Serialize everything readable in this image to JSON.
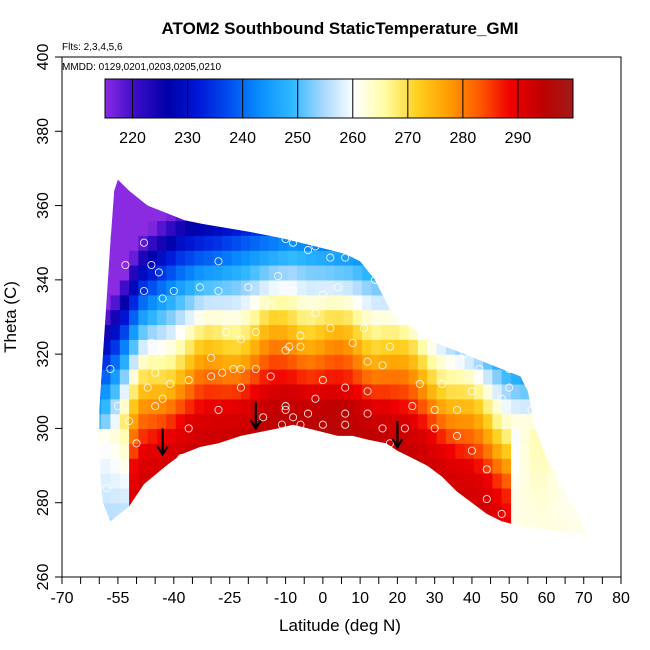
{
  "chart_data": {
    "type": "heatmap",
    "title": "ATOM2 Southbound StaticTemperature_GMI",
    "flights_label": "Flts: 2,3,4,5,6",
    "dates_label": "MMDD: 0129,0201,0203,0205,0210",
    "xlabel": "Latitude (deg N)",
    "ylabel": "Theta (C)",
    "xlim": [
      -70,
      80
    ],
    "ylim": [
      260,
      400
    ],
    "x_ticks": [
      -70,
      -55,
      -40,
      -25,
      -10,
      0,
      10,
      20,
      30,
      40,
      50,
      60,
      70,
      80
    ],
    "x_minor_ticks": [
      -65,
      -60,
      -50,
      -45,
      -35,
      -30,
      -20,
      -15,
      -5,
      5,
      15,
      25,
      35,
      45,
      55,
      65,
      75
    ],
    "y_ticks": [
      260,
      280,
      300,
      320,
      340,
      360,
      380,
      400
    ],
    "colorbar": {
      "range": [
        215,
        300
      ],
      "ticks": [
        220,
        230,
        240,
        250,
        260,
        270,
        280,
        290
      ],
      "colors": [
        "#8a2be2",
        "#3a0bc8",
        "#0000a8",
        "#0018d8",
        "#0050f0",
        "#0a90ff",
        "#30b8ff",
        "#a8d8ff",
        "#ffffff",
        "#fffca0",
        "#ffd020",
        "#ff9e00",
        "#ff5a00",
        "#f00000",
        "#c00000",
        "#a01a1a"
      ]
    },
    "envelope": {
      "bottom": [
        [
          -57,
          275
        ],
        [
          -52,
          279
        ],
        [
          -48,
          285
        ],
        [
          -42,
          290
        ],
        [
          -38,
          293
        ],
        [
          -33,
          295
        ],
        [
          -28,
          296
        ],
        [
          -22,
          298
        ],
        [
          -17,
          299
        ],
        [
          -12,
          300
        ],
        [
          -8,
          301
        ],
        [
          -4,
          300
        ],
        [
          0,
          299
        ],
        [
          4,
          298
        ],
        [
          8,
          298
        ],
        [
          12,
          297
        ],
        [
          17,
          296
        ],
        [
          20,
          294
        ],
        [
          24,
          292
        ],
        [
          28,
          290
        ],
        [
          32,
          287
        ],
        [
          36,
          283
        ],
        [
          40,
          280
        ],
        [
          44,
          277
        ],
        [
          48,
          275
        ],
        [
          52,
          274
        ],
        [
          56,
          273
        ],
        [
          60,
          273
        ],
        [
          64,
          272
        ],
        [
          68,
          272
        ],
        [
          71,
          271
        ]
      ],
      "top": [
        [
          71,
          271
        ],
        [
          68,
          278
        ],
        [
          64,
          285
        ],
        [
          60,
          292
        ],
        [
          57,
          300
        ],
        [
          55,
          310
        ],
        [
          53,
          314
        ],
        [
          48,
          316
        ],
        [
          43,
          318
        ],
        [
          38,
          320
        ],
        [
          33,
          322
        ],
        [
          28,
          324
        ],
        [
          23,
          328
        ],
        [
          18,
          332
        ],
        [
          14,
          340
        ],
        [
          10,
          345
        ],
        [
          6,
          347
        ],
        [
          2,
          348
        ],
        [
          -2,
          349
        ],
        [
          -6,
          350
        ],
        [
          -10,
          351
        ],
        [
          -15,
          352
        ],
        [
          -20,
          353
        ],
        [
          -26,
          354
        ],
        [
          -32,
          355
        ],
        [
          -37,
          356
        ],
        [
          -42,
          358
        ],
        [
          -47,
          360
        ],
        [
          -52,
          364
        ],
        [
          -55,
          367
        ],
        [
          -56,
          364
        ],
        [
          -57,
          350
        ],
        [
          -58,
          335
        ],
        [
          -59,
          320
        ],
        [
          -60,
          305
        ],
        [
          -60,
          290
        ],
        [
          -59,
          280
        ],
        [
          -57,
          275
        ]
      ]
    },
    "points": [
      [
        -48,
        350
      ],
      [
        -53,
        344
      ],
      [
        -46,
        344
      ],
      [
        -44,
        342
      ],
      [
        -48,
        337
      ],
      [
        -43,
        335
      ],
      [
        -40,
        337
      ],
      [
        -33,
        338
      ],
      [
        -28,
        337
      ],
      [
        -60,
        323
      ],
      [
        -57,
        316
      ],
      [
        -46,
        323
      ],
      [
        -44,
        320
      ],
      [
        -45,
        315
      ],
      [
        -41,
        312
      ],
      [
        -36,
        313
      ],
      [
        -30,
        314
      ],
      [
        -27,
        315
      ],
      [
        -22,
        316
      ],
      [
        -18,
        316
      ],
      [
        -47,
        311
      ],
      [
        -43,
        308
      ],
      [
        -45,
        306
      ],
      [
        -55,
        306
      ],
      [
        -52,
        302
      ],
      [
        -61,
        294
      ],
      [
        -59,
        297
      ],
      [
        -38,
        292
      ],
      [
        -32,
        294
      ],
      [
        -24,
        316
      ],
      [
        -10,
        321
      ],
      [
        -9,
        322
      ],
      [
        -6,
        322
      ],
      [
        -8,
        350
      ],
      [
        -10,
        351
      ],
      [
        -4,
        348
      ],
      [
        -2,
        349
      ],
      [
        2,
        346
      ],
      [
        6,
        346
      ],
      [
        12,
        349
      ],
      [
        14,
        349
      ],
      [
        -28,
        345
      ],
      [
        -20,
        338
      ],
      [
        -12,
        341
      ],
      [
        -8,
        337
      ],
      [
        0,
        336
      ],
      [
        4,
        338
      ],
      [
        8,
        333
      ],
      [
        11,
        327
      ],
      [
        8,
        323
      ],
      [
        12,
        318
      ],
      [
        18,
        322
      ],
      [
        24,
        328
      ],
      [
        28,
        326
      ],
      [
        32,
        324
      ],
      [
        38,
        320
      ],
      [
        42,
        316
      ],
      [
        50,
        316
      ],
      [
        54,
        316
      ],
      [
        50,
        311
      ],
      [
        56,
        305
      ],
      [
        48,
        308
      ],
      [
        40,
        310
      ],
      [
        36,
        305
      ],
      [
        30,
        305
      ],
      [
        24,
        306
      ],
      [
        -10,
        306
      ],
      [
        -10,
        305
      ],
      [
        -8,
        303
      ],
      [
        -11,
        301
      ],
      [
        -6,
        301
      ],
      [
        -4,
        304
      ],
      [
        0,
        301
      ],
      [
        6,
        304
      ],
      [
        6,
        301
      ],
      [
        12,
        304
      ],
      [
        16,
        300
      ],
      [
        22,
        300
      ],
      [
        20,
        290
      ],
      [
        18,
        296
      ],
      [
        -2,
        308
      ],
      [
        0,
        313
      ],
      [
        -14,
        314
      ],
      [
        12,
        310
      ],
      [
        30,
        300
      ],
      [
        36,
        298
      ],
      [
        40,
        294
      ],
      [
        44,
        289
      ],
      [
        60,
        294
      ],
      [
        62,
        286
      ],
      [
        44,
        281
      ],
      [
        48,
        277
      ],
      [
        52,
        274
      ],
      [
        56,
        273
      ],
      [
        -36,
        300
      ],
      [
        -50,
        296
      ],
      [
        -56,
        291
      ],
      [
        -58,
        284
      ],
      [
        -62,
        281
      ],
      [
        -65,
        275
      ],
      [
        -14,
        333
      ],
      [
        -18,
        326
      ],
      [
        -22,
        324
      ],
      [
        -26,
        326
      ],
      [
        -30,
        319
      ],
      [
        -6,
        325
      ],
      [
        -2,
        331
      ],
      [
        2,
        327
      ],
      [
        16,
        317
      ],
      [
        14,
        340
      ],
      [
        20,
        335
      ],
      [
        28,
        338
      ],
      [
        34,
        333
      ],
      [
        6,
        311
      ],
      [
        -22,
        311
      ],
      [
        -16,
        303
      ],
      [
        26,
        312
      ],
      [
        32,
        312
      ],
      [
        -2,
        295
      ],
      [
        -28,
        305
      ]
    ],
    "arrows": [
      [
        -43,
        293
      ],
      [
        -18,
        300
      ],
      [
        20,
        295
      ]
    ]
  }
}
